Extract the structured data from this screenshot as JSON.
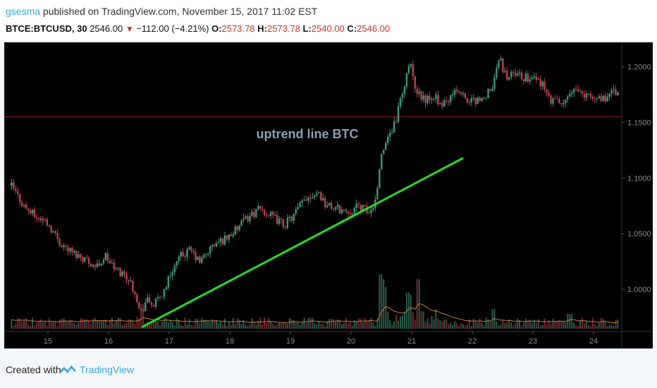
{
  "header": {
    "username": "gsesma",
    "published_text": "published on TradingView.com, November 15, 2017 11:02 EST",
    "symbol": "BTCE:BTCUSD, 30",
    "last_price": "2546.00",
    "change_arrow": "▼",
    "change": "−112.00 (−4.21%)",
    "open_label": "O:",
    "open_value": "2573.78",
    "high_label": "H:",
    "high_value": "2573.78",
    "low_label": "L:",
    "low_value": "2540.00",
    "close_label": "C:",
    "close_value": "2546.00"
  },
  "footer": {
    "created_with": "Created with",
    "brand": "TradingView",
    "logo_icon": "tradingview-logo-icon"
  },
  "colors": {
    "background": "#000000",
    "up_candle": "#3d9a77",
    "down_candle": "#c0404a",
    "trend_line": "#22dd22",
    "horizontal_line": "#8b2323",
    "volume_ma": "#c97d3a",
    "annotation": "#8a9fb5",
    "axis_text": "#8a8a8a"
  },
  "chart_data": {
    "type": "candlestick",
    "title": "",
    "annotation": "uptrend line BTC",
    "xlabel": "",
    "ylabel": "",
    "x_ticks": [
      "15",
      "16",
      "17",
      "18",
      "19",
      "20",
      "21",
      "22",
      "23",
      "24"
    ],
    "y_ticks": [
      "1.2000",
      "1.1500",
      "1.1000",
      "1.0500",
      "1.0000"
    ],
    "ylim": [
      0.962,
      1.222
    ],
    "grid": false,
    "price_path": [
      [
        14.4,
        1.093
      ],
      [
        14.6,
        1.075
      ],
      [
        14.8,
        1.065
      ],
      [
        14.95,
        1.062
      ],
      [
        15.05,
        1.055
      ],
      [
        15.2,
        1.042
      ],
      [
        15.4,
        1.033
      ],
      [
        15.6,
        1.028
      ],
      [
        15.8,
        1.02
      ],
      [
        15.95,
        1.03
      ],
      [
        16.1,
        1.018
      ],
      [
        16.3,
        1.012
      ],
      [
        16.45,
        0.997
      ],
      [
        16.52,
        0.977
      ],
      [
        16.62,
        0.99
      ],
      [
        16.75,
        0.986
      ],
      [
        16.9,
        0.997
      ],
      [
        17.05,
        1.018
      ],
      [
        17.2,
        1.03
      ],
      [
        17.35,
        1.035
      ],
      [
        17.5,
        1.024
      ],
      [
        17.7,
        1.038
      ],
      [
        17.9,
        1.045
      ],
      [
        18.1,
        1.053
      ],
      [
        18.3,
        1.065
      ],
      [
        18.5,
        1.072
      ],
      [
        18.7,
        1.065
      ],
      [
        18.9,
        1.058
      ],
      [
        19.05,
        1.066
      ],
      [
        19.25,
        1.082
      ],
      [
        19.45,
        1.088
      ],
      [
        19.6,
        1.075
      ],
      [
        19.8,
        1.072
      ],
      [
        19.95,
        1.07
      ],
      [
        20.15,
        1.075
      ],
      [
        20.3,
        1.068
      ],
      [
        20.4,
        1.08
      ],
      [
        20.48,
        1.115
      ],
      [
        20.6,
        1.135
      ],
      [
        20.72,
        1.148
      ],
      [
        20.8,
        1.165
      ],
      [
        20.9,
        1.19
      ],
      [
        20.97,
        1.208
      ],
      [
        21.05,
        1.178
      ],
      [
        21.2,
        1.17
      ],
      [
        21.35,
        1.175
      ],
      [
        21.5,
        1.163
      ],
      [
        21.7,
        1.18
      ],
      [
        21.9,
        1.17
      ],
      [
        22.05,
        1.168
      ],
      [
        22.2,
        1.172
      ],
      [
        22.35,
        1.185
      ],
      [
        22.45,
        1.207
      ],
      [
        22.55,
        1.192
      ],
      [
        22.7,
        1.192
      ],
      [
        22.9,
        1.19
      ],
      [
        23.1,
        1.188
      ],
      [
        23.3,
        1.17
      ],
      [
        23.5,
        1.165
      ],
      [
        23.6,
        1.178
      ],
      [
        23.8,
        1.175
      ],
      [
        24.0,
        1.17
      ],
      [
        24.2,
        1.173
      ],
      [
        24.4,
        1.178
      ]
    ],
    "horizontal_line": {
      "y": 1.155
    },
    "trend_line": {
      "x1": 16.55,
      "y1": 0.966,
      "x2": 21.85,
      "y2": 1.118
    },
    "volume_spikes": [
      {
        "x": 16.55,
        "v": 0.5
      },
      {
        "x": 20.5,
        "v": 0.9
      },
      {
        "x": 20.55,
        "v": 0.7
      },
      {
        "x": 21.1,
        "v": 0.85
      },
      {
        "x": 20.95,
        "v": 0.55
      },
      {
        "x": 22.35,
        "v": 0.4
      },
      {
        "x": 23.6,
        "v": 0.3
      }
    ]
  }
}
